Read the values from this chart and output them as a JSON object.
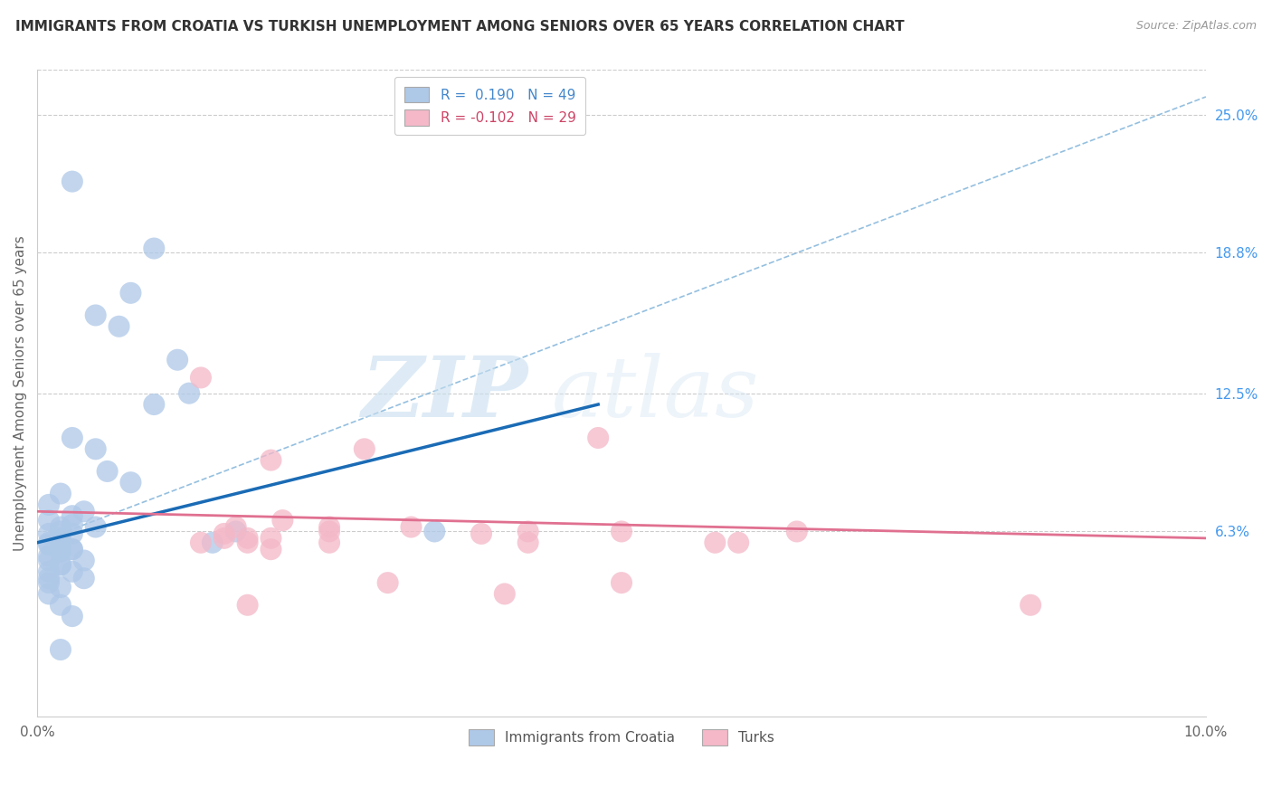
{
  "title": "IMMIGRANTS FROM CROATIA VS TURKISH UNEMPLOYMENT AMONG SENIORS OVER 65 YEARS CORRELATION CHART",
  "source": "Source: ZipAtlas.com",
  "ylabel_label": "Unemployment Among Seniors over 65 years",
  "xlim": [
    0.0,
    0.1
  ],
  "ylim": [
    -0.02,
    0.27
  ],
  "xticks": [
    0.0,
    0.02,
    0.04,
    0.06,
    0.08,
    0.1
  ],
  "xtick_labels": [
    "0.0%",
    "",
    "",
    "",
    "",
    "10.0%"
  ],
  "ytick_vals_right": [
    0.063,
    0.125,
    0.188,
    0.25
  ],
  "ytick_labels_right": [
    "6.3%",
    "12.5%",
    "18.8%",
    "25.0%"
  ],
  "watermark_zip": "ZIP",
  "watermark_atlas": "atlas",
  "blue_scatter_color": "#aec8e8",
  "blue_edge_color": "#5a9fd4",
  "pink_scatter_color": "#f4b8c8",
  "pink_edge_color": "#e07090",
  "blue_line_color": "#1a6bb5",
  "pink_line_color": "#e07090",
  "dashed_line_color": "#7ab0d8",
  "blue_scatter_x": [
    0.003,
    0.008,
    0.01,
    0.012,
    0.005,
    0.007,
    0.01,
    0.013,
    0.003,
    0.005,
    0.006,
    0.008,
    0.001,
    0.002,
    0.003,
    0.004,
    0.001,
    0.002,
    0.003,
    0.005,
    0.001,
    0.002,
    0.002,
    0.003,
    0.001,
    0.001,
    0.002,
    0.002,
    0.003,
    0.001,
    0.001,
    0.002,
    0.003,
    0.001,
    0.002,
    0.004,
    0.001,
    0.002,
    0.034,
    0.002,
    0.003,
    0.004,
    0.015,
    0.002,
    0.001,
    0.001,
    0.002,
    0.003,
    0.017
  ],
  "blue_scatter_y": [
    0.22,
    0.17,
    0.19,
    0.14,
    0.16,
    0.155,
    0.12,
    0.125,
    0.105,
    0.1,
    0.09,
    0.085,
    0.075,
    0.08,
    0.07,
    0.072,
    0.068,
    0.065,
    0.066,
    0.065,
    0.062,
    0.063,
    0.06,
    0.062,
    0.058,
    0.057,
    0.055,
    0.054,
    0.055,
    0.052,
    0.05,
    0.048,
    0.045,
    0.04,
    0.038,
    0.042,
    0.035,
    0.01,
    0.063,
    0.058,
    0.055,
    0.05,
    0.058,
    0.048,
    0.045,
    0.042,
    0.03,
    0.025,
    0.063
  ],
  "pink_scatter_x": [
    0.014,
    0.02,
    0.025,
    0.016,
    0.017,
    0.018,
    0.021,
    0.016,
    0.014,
    0.018,
    0.02,
    0.025,
    0.032,
    0.038,
    0.042,
    0.05,
    0.058,
    0.065,
    0.06,
    0.028,
    0.02,
    0.025,
    0.03,
    0.04,
    0.018,
    0.042,
    0.05,
    0.085,
    0.048
  ],
  "pink_scatter_y": [
    0.132,
    0.095,
    0.065,
    0.06,
    0.065,
    0.06,
    0.068,
    0.062,
    0.058,
    0.058,
    0.06,
    0.063,
    0.065,
    0.062,
    0.058,
    0.063,
    0.058,
    0.063,
    0.058,
    0.1,
    0.055,
    0.058,
    0.04,
    0.035,
    0.03,
    0.063,
    0.04,
    0.03,
    0.105
  ],
  "blue_trend_x": [
    0.0,
    0.048
  ],
  "blue_trend_y": [
    0.058,
    0.12
  ],
  "dashed_trend_x": [
    0.0,
    0.1
  ],
  "dashed_trend_y": [
    0.058,
    0.258
  ],
  "pink_trend_x": [
    0.0,
    0.1
  ],
  "pink_trend_y": [
    0.072,
    0.06
  ]
}
